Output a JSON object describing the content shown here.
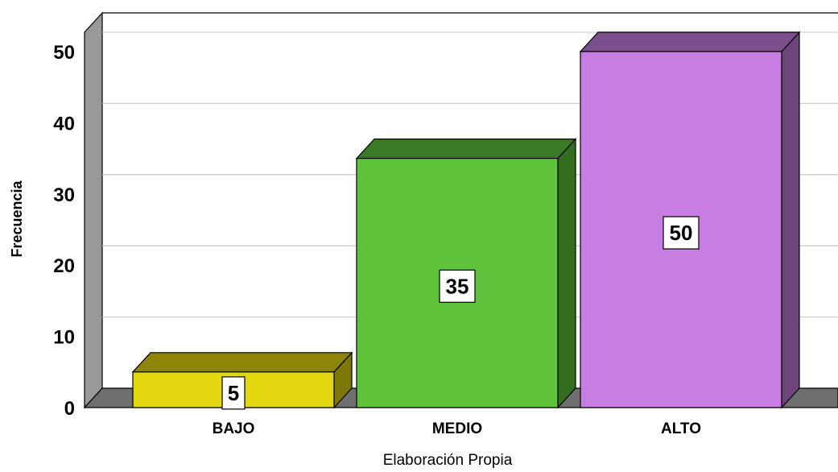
{
  "chart_data": {
    "type": "bar",
    "categories": [
      "BAJO",
      "MEDIO",
      "ALTO"
    ],
    "values": [
      5,
      35,
      50
    ],
    "data_labels": [
      "5",
      "35",
      "50"
    ],
    "colors": [
      "#e3d710",
      "#5fc43b",
      "#c77de2"
    ],
    "ylabel": "Frecuencia",
    "xlabel": "Elaboración Propia",
    "ylim": [
      0,
      50
    ],
    "yticks": [
      0,
      10,
      20,
      30,
      40,
      50
    ],
    "ytick_labels": [
      "0",
      "10",
      "20",
      "30",
      "40",
      "50"
    ],
    "grid": true,
    "style": "3d"
  }
}
